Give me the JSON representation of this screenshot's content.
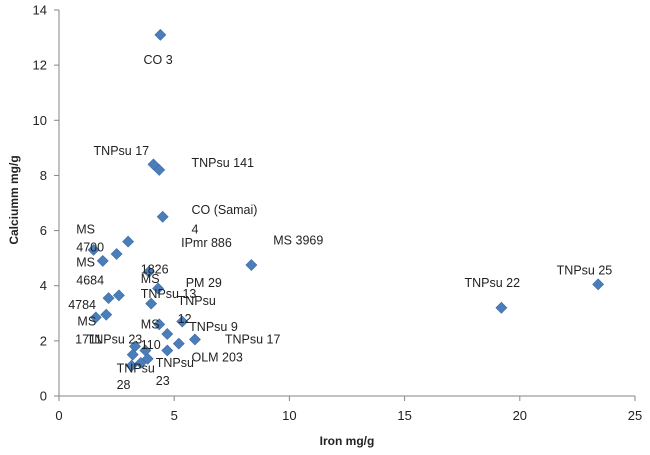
{
  "chart_data": {
    "type": "scatter",
    "xlabel": "Iron mg/g",
    "ylabel": "Calciumm mg/g",
    "xlim": [
      0,
      25
    ],
    "ylim": [
      0,
      14
    ],
    "xticks": [
      0,
      5,
      10,
      15,
      20,
      25
    ],
    "yticks": [
      0,
      2,
      4,
      6,
      8,
      10,
      12,
      14
    ],
    "grid": false,
    "marker": "diamond",
    "marker_color": "#4a7ebb",
    "points": [
      {
        "x": 4.4,
        "y": 13.1
      },
      {
        "x": 4.1,
        "y": 8.4
      },
      {
        "x": 4.35,
        "y": 8.2
      },
      {
        "x": 4.5,
        "y": 6.5
      },
      {
        "x": 3.0,
        "y": 5.6
      },
      {
        "x": 1.5,
        "y": 5.3
      },
      {
        "x": 2.5,
        "y": 5.15
      },
      {
        "x": 1.9,
        "y": 4.9
      },
      {
        "x": 3.9,
        "y": 4.5
      },
      {
        "x": 8.35,
        "y": 4.75
      },
      {
        "x": 4.3,
        "y": 3.9
      },
      {
        "x": 2.15,
        "y": 3.55
      },
      {
        "x": 2.6,
        "y": 3.65
      },
      {
        "x": 4.0,
        "y": 3.35
      },
      {
        "x": 23.4,
        "y": 4.05
      },
      {
        "x": 19.2,
        "y": 3.2
      },
      {
        "x": 1.6,
        "y": 2.85
      },
      {
        "x": 2.05,
        "y": 2.95
      },
      {
        "x": 4.35,
        "y": 2.6
      },
      {
        "x": 5.35,
        "y": 2.7
      },
      {
        "x": 4.7,
        "y": 2.25
      },
      {
        "x": 5.9,
        "y": 2.05
      },
      {
        "x": 5.2,
        "y": 1.9
      },
      {
        "x": 3.3,
        "y": 1.8
      },
      {
        "x": 3.75,
        "y": 1.65
      },
      {
        "x": 4.7,
        "y": 1.65
      },
      {
        "x": 3.2,
        "y": 1.5
      },
      {
        "x": 3.85,
        "y": 1.35
      },
      {
        "x": 3.55,
        "y": 1.2
      },
      {
        "x": 3.15,
        "y": 1.1
      }
    ],
    "annotations": [
      {
        "text": "CO 3",
        "x": 4.3,
        "y": 12.05,
        "anchor": "middle"
      },
      {
        "text": "TNPsu 17",
        "x": 1.5,
        "y": 8.75,
        "anchor": "start"
      },
      {
        "text": "TNPsu 141",
        "x": 5.75,
        "y": 8.3,
        "anchor": "start"
      },
      {
        "text": "CO (Samai)",
        "x": 5.75,
        "y": 6.6,
        "anchor": "start"
      },
      {
        "text": "4",
        "x": 5.75,
        "y": 5.9,
        "anchor": "start"
      },
      {
        "text": "IPmr 886",
        "x": 5.3,
        "y": 5.4,
        "anchor": "start"
      },
      {
        "text": "MS 3969",
        "x": 9.3,
        "y": 5.5,
        "anchor": "start"
      },
      {
        "text": "MS",
        "x": 0.75,
        "y": 5.9,
        "anchor": "start"
      },
      {
        "text": "4700",
        "x": 0.75,
        "y": 5.25,
        "anchor": "start"
      },
      {
        "text": "MS",
        "x": 0.75,
        "y": 4.7,
        "anchor": "start"
      },
      {
        "text": "4684",
        "x": 0.75,
        "y": 4.05,
        "anchor": "start"
      },
      {
        "text": "MS",
        "x": 3.55,
        "y": 4.1,
        "anchor": "start"
      },
      {
        "text": "1826",
        "x": 3.55,
        "y": 4.45,
        "anchor": "start"
      },
      {
        "text": "PM 29",
        "x": 5.5,
        "y": 3.95,
        "anchor": "start"
      },
      {
        "text": "TNPsu 25",
        "x": 21.6,
        "y": 4.4,
        "anchor": "start"
      },
      {
        "text": "TNPsu 22",
        "x": 17.6,
        "y": 3.95,
        "anchor": "start"
      },
      {
        "text": "4784",
        "x": 0.4,
        "y": 3.15,
        "anchor": "start"
      },
      {
        "text": "MS",
        "x": 0.8,
        "y": 2.55,
        "anchor": "start"
      },
      {
        "text": "TNPsu 13",
        "x": 3.55,
        "y": 3.55,
        "anchor": "start"
      },
      {
        "text": "TNPsu",
        "x": 5.15,
        "y": 3.3,
        "anchor": "start"
      },
      {
        "text": "12",
        "x": 5.15,
        "y": 2.65,
        "anchor": "start"
      },
      {
        "text": "TNPsu 9",
        "x": 5.65,
        "y": 2.35,
        "anchor": "start"
      },
      {
        "text": "TNPsu 17",
        "x": 7.2,
        "y": 1.9,
        "anchor": "start"
      },
      {
        "text": "1711",
        "x": 0.7,
        "y": 1.9,
        "anchor": "start"
      },
      {
        "text": "TNPsu 23",
        "x": 1.2,
        "y": 1.9,
        "anchor": "start"
      },
      {
        "text": "MS",
        "x": 3.55,
        "y": 2.45,
        "anchor": "start"
      },
      {
        "text": "110",
        "x": 3.55,
        "y": 1.7,
        "anchor": "start"
      },
      {
        "text": "OLM 203",
        "x": 5.75,
        "y": 1.25,
        "anchor": "start"
      },
      {
        "text": "TNPsu",
        "x": 2.5,
        "y": 0.85,
        "anchor": "start"
      },
      {
        "text": "28",
        "x": 2.5,
        "y": 0.25,
        "anchor": "start"
      },
      {
        "text": "TNPsu",
        "x": 4.2,
        "y": 1.05,
        "anchor": "start"
      },
      {
        "text": "23",
        "x": 4.2,
        "y": 0.4,
        "anchor": "start"
      }
    ]
  }
}
